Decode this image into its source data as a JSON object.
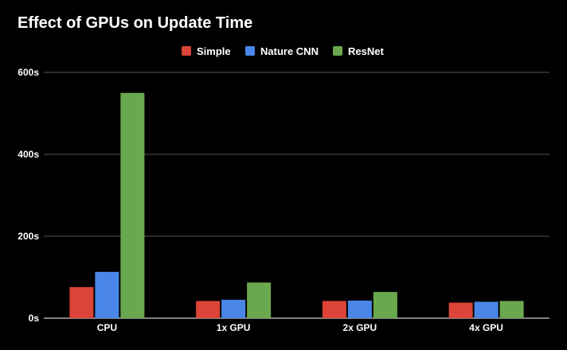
{
  "chart_data": {
    "type": "bar",
    "title": "Effect of GPUs on Update Time",
    "categories": [
      "CPU",
      "1x GPU",
      "2x GPU",
      "4x GPU"
    ],
    "series": [
      {
        "name": "Simple",
        "color": "#db4437",
        "values": [
          76,
          42,
          42,
          38
        ]
      },
      {
        "name": "Nature CNN",
        "color": "#4a86e8",
        "values": [
          113,
          45,
          43,
          40
        ]
      },
      {
        "name": "ResNet",
        "color": "#6aa84f",
        "values": [
          550,
          87,
          64,
          42
        ]
      }
    ],
    "y_ticks": [
      {
        "value": 0,
        "label": "0s"
      },
      {
        "value": 200,
        "label": "200s"
      },
      {
        "value": 400,
        "label": "400s"
      },
      {
        "value": 600,
        "label": "600s"
      }
    ],
    "xlabel": "",
    "ylabel": "",
    "ylim": [
      0,
      600
    ],
    "grid": true,
    "legend_position": "top",
    "background_color": "#000000",
    "gridline_color": "#555555",
    "text_color": "#ffffff"
  }
}
